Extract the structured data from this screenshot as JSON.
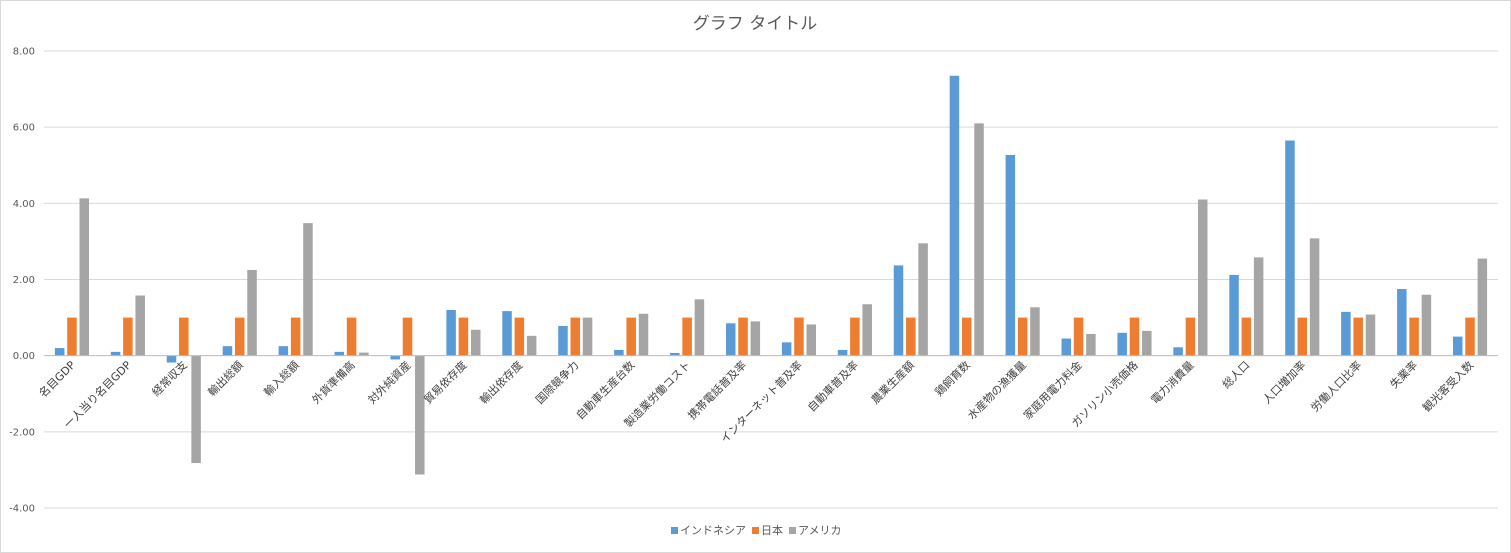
{
  "chart_data": {
    "type": "bar",
    "title": "グラフ タイトル",
    "xlabel": "",
    "ylabel": "",
    "ylim": [
      -4,
      8
    ],
    "yticks": [
      "8.00",
      "6.00",
      "4.00",
      "2.00",
      "0.00",
      "-2.00",
      "-4.00"
    ],
    "grid": true,
    "legend_position": "bottom",
    "categories": [
      "名目GDP",
      "一人当り名目GDP",
      "経常収支",
      "輸出総額",
      "輸入総額",
      "外貨準備高",
      "対外純資産",
      "貿易依存度",
      "輸出依存度",
      "国際競争力",
      "自動車生産台数",
      "製造業労働コスト",
      "携帯電話普及率",
      "インターネット普及率",
      "自動車普及率",
      "農業生産額",
      "鶏飼育数",
      "水産物の漁獲量",
      "家庭用電力料金",
      "ガソリン小売価格",
      "電力消費量",
      "総人口",
      "人口増加率",
      "労働人口比率",
      "失業率",
      "観光客受入数"
    ],
    "series": [
      {
        "name": "インドネシア",
        "color": "#5b9bd5",
        "values": [
          0.2,
          0.1,
          -0.18,
          0.25,
          0.25,
          0.1,
          -0.1,
          1.2,
          1.17,
          0.78,
          0.15,
          0.07,
          0.85,
          0.35,
          0.15,
          2.37,
          7.35,
          5.27,
          0.45,
          0.6,
          0.22,
          2.12,
          5.65,
          1.15,
          1.75,
          0.5
        ]
      },
      {
        "name": "日本",
        "color": "#ed7d31",
        "values": [
          1,
          1,
          1,
          1,
          1,
          1,
          1,
          1,
          1,
          1,
          1,
          1,
          1,
          1,
          1,
          1,
          1,
          1,
          1,
          1,
          1,
          1,
          1,
          1,
          1,
          1
        ]
      },
      {
        "name": "アメリカ",
        "color": "#a5a5a5",
        "values": [
          4.13,
          1.58,
          -2.82,
          2.25,
          3.48,
          0.08,
          -3.12,
          0.68,
          0.52,
          1.0,
          1.1,
          1.48,
          0.9,
          0.82,
          1.35,
          2.95,
          6.1,
          1.27,
          0.57,
          0.65,
          4.1,
          2.58,
          3.08,
          1.08,
          1.6,
          2.55
        ]
      }
    ]
  }
}
